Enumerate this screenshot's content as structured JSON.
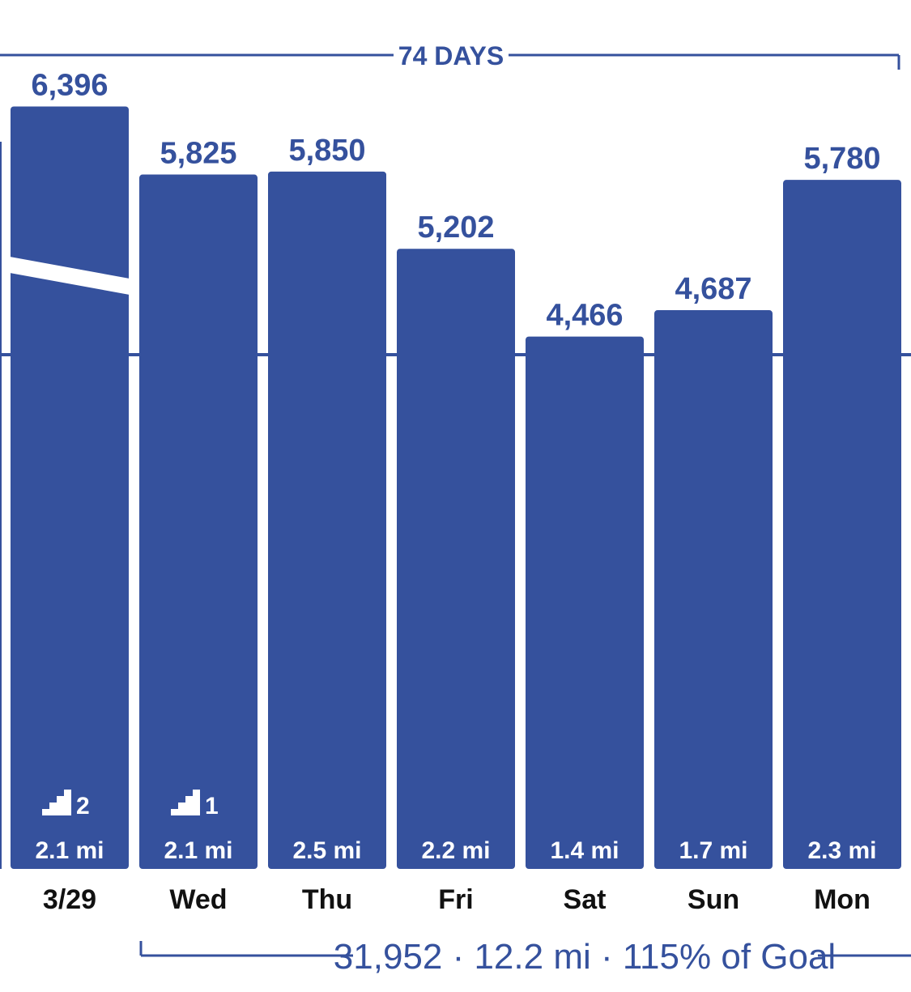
{
  "colors": {
    "bar": "#35519d",
    "text": "#35519d",
    "label": "#111111",
    "background": "#ffffff"
  },
  "top_bracket": {
    "label": "74 DAYS"
  },
  "summary": {
    "text": "31,952 · 12.2 mi · 115% of Goal"
  },
  "chart_data": {
    "type": "bar",
    "categories": [
      "3/29",
      "Wed",
      "Thu",
      "Fri",
      "Sat",
      "Sun",
      "Mon"
    ],
    "values": [
      6396,
      5825,
      5850,
      5202,
      4466,
      4687,
      5780
    ],
    "value_labels": [
      "6,396",
      "5,825",
      "5,850",
      "5,202",
      "4,466",
      "4,687",
      "5,780"
    ],
    "distance_labels": [
      "2.1 mi",
      "2.1 mi",
      "2.5 mi",
      "2.2 mi",
      "1.4 mi",
      "1.7 mi",
      "2.3 mi"
    ],
    "flights": [
      2,
      1,
      null,
      null,
      null,
      null,
      null
    ],
    "flights_icon": "stairs-icon",
    "ylim": [
      0,
      6800
    ],
    "goal_line": true,
    "grid": false
  }
}
